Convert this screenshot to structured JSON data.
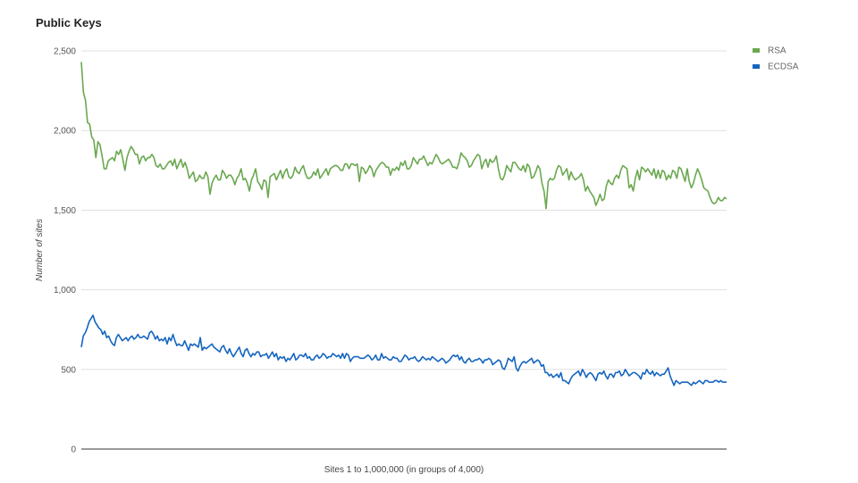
{
  "chart_data": {
    "type": "line",
    "title": "Public Keys",
    "xlabel": "Sites 1 to 1,000,000 (in groups of 4,000)",
    "ylabel": "Number of sites",
    "ylim": [
      0,
      2500
    ],
    "yticks": [
      {
        "value": 0,
        "label": "0"
      },
      {
        "value": 500,
        "label": "500"
      },
      {
        "value": 1000,
        "label": "1,000"
      },
      {
        "value": 1500,
        "label": "1,500"
      },
      {
        "value": 2000,
        "label": "2,000"
      },
      {
        "value": 2500,
        "label": "2,500"
      }
    ],
    "grid": true,
    "legend": "top-right",
    "series": [
      {
        "name": "RSA",
        "color": "#6aa84f",
        "values": [
          2430,
          2240,
          2190,
          2050,
          2040,
          1960,
          1940,
          1830,
          1930,
          1910,
          1840,
          1760,
          1760,
          1810,
          1820,
          1830,
          1810,
          1870,
          1850,
          1880,
          1820,
          1750,
          1830,
          1870,
          1900,
          1880,
          1850,
          1850,
          1790,
          1830,
          1840,
          1810,
          1830,
          1830,
          1850,
          1830,
          1780,
          1770,
          1790,
          1760,
          1760,
          1780,
          1800,
          1810,
          1780,
          1820,
          1760,
          1790,
          1820,
          1770,
          1800,
          1760,
          1700,
          1720,
          1740,
          1680,
          1690,
          1720,
          1700,
          1700,
          1740,
          1710,
          1600,
          1670,
          1700,
          1720,
          1690,
          1690,
          1750,
          1730,
          1700,
          1720,
          1720,
          1700,
          1660,
          1700,
          1720,
          1760,
          1690,
          1700,
          1670,
          1620,
          1690,
          1720,
          1760,
          1680,
          1660,
          1630,
          1690,
          1680,
          1580,
          1710,
          1720,
          1730,
          1690,
          1720,
          1750,
          1700,
          1740,
          1760,
          1710,
          1700,
          1720,
          1770,
          1740,
          1730,
          1760,
          1780,
          1730,
          1700,
          1700,
          1710,
          1740,
          1720,
          1760,
          1700,
          1720,
          1740,
          1760,
          1720,
          1760,
          1770,
          1780,
          1780,
          1770,
          1750,
          1750,
          1790,
          1790,
          1760,
          1790,
          1790,
          1780,
          1790,
          1680,
          1770,
          1760,
          1730,
          1750,
          1780,
          1760,
          1710,
          1750,
          1770,
          1790,
          1800,
          1790,
          1770,
          1770,
          1720,
          1760,
          1750,
          1770,
          1750,
          1800,
          1780,
          1810,
          1760,
          1760,
          1780,
          1830,
          1810,
          1790,
          1820,
          1820,
          1840,
          1810,
          1780,
          1800,
          1790,
          1820,
          1850,
          1830,
          1800,
          1790,
          1800,
          1810,
          1820,
          1800,
          1770,
          1770,
          1760,
          1800,
          1860,
          1840,
          1830,
          1810,
          1770,
          1780,
          1810,
          1830,
          1850,
          1840,
          1760,
          1800,
          1820,
          1770,
          1820,
          1800,
          1810,
          1840,
          1760,
          1700,
          1690,
          1720,
          1780,
          1760,
          1740,
          1800,
          1800,
          1780,
          1760,
          1750,
          1780,
          1740,
          1790,
          1770,
          1700,
          1710,
          1740,
          1780,
          1760,
          1670,
          1620,
          1510,
          1680,
          1700,
          1690,
          1700,
          1750,
          1780,
          1770,
          1720,
          1740,
          1760,
          1690,
          1740,
          1710,
          1690,
          1700,
          1710,
          1730,
          1690,
          1620,
          1650,
          1620,
          1600,
          1580,
          1530,
          1560,
          1600,
          1560,
          1570,
          1650,
          1690,
          1670,
          1660,
          1700,
          1720,
          1700,
          1750,
          1780,
          1770,
          1760,
          1640,
          1660,
          1620,
          1700,
          1750,
          1690,
          1770,
          1760,
          1740,
          1760,
          1740,
          1720,
          1760,
          1700,
          1750,
          1700,
          1750,
          1740,
          1690,
          1720,
          1700,
          1750,
          1740,
          1700,
          1770,
          1760,
          1720,
          1680,
          1760,
          1680,
          1640,
          1670,
          1720,
          1760,
          1730,
          1690,
          1640,
          1630,
          1620,
          1580,
          1550,
          1540,
          1550,
          1580,
          1560,
          1560,
          1580,
          1570
        ]
      },
      {
        "name": "ECDSA",
        "color": "#1565c0",
        "values": [
          640,
          710,
          730,
          760,
          800,
          820,
          840,
          800,
          780,
          760,
          750,
          720,
          740,
          700,
          710,
          680,
          660,
          650,
          700,
          720,
          700,
          680,
          690,
          700,
          680,
          700,
          710,
          690,
          700,
          720,
          700,
          700,
          710,
          700,
          690,
          730,
          740,
          720,
          690,
          710,
          680,
          690,
          680,
          700,
          660,
          700,
          680,
          720,
          680,
          650,
          660,
          650,
          650,
          680,
          650,
          620,
          660,
          650,
          660,
          650,
          640,
          700,
          620,
          640,
          630,
          640,
          650,
          660,
          640,
          630,
          620,
          610,
          640,
          650,
          620,
          600,
          630,
          600,
          580,
          600,
          620,
          640,
          600,
          580,
          620,
          630,
          600,
          580,
          600,
          590,
          610,
          610,
          580,
          590,
          590,
          600,
          570,
          590,
          610,
          580,
          600,
          560,
          580,
          570,
          580,
          550,
          570,
          560,
          580,
          600,
          560,
          570,
          590,
          590,
          580,
          600,
          570,
          580,
          560,
          560,
          580,
          590,
          570,
          580,
          600,
          590,
          570,
          580,
          580,
          600,
          590,
          580,
          590,
          570,
          600,
          570,
          600,
          590,
          550,
          570,
          580,
          580,
          580,
          570,
          570,
          570,
          580,
          590,
          580,
          560,
          570,
          590,
          560,
          560,
          600,
          570,
          580,
          570,
          560,
          560,
          580,
          570,
          570,
          550,
          550,
          570,
          590,
          580,
          560,
          570,
          570,
          580,
          560,
          550,
          560,
          580,
          570,
          560,
          570,
          560,
          580,
          570,
          560,
          550,
          560,
          570,
          560,
          540,
          550,
          560,
          580,
          590,
          580,
          590,
          560,
          580,
          550,
          540,
          560,
          570,
          550,
          550,
          560,
          560,
          570,
          560,
          540,
          560,
          560,
          570,
          560,
          530,
          540,
          550,
          560,
          550,
          510,
          500,
          530,
          570,
          560,
          550,
          580,
          510,
          490,
          520,
          540,
          550,
          540,
          550,
          560,
          570,
          540,
          550,
          560,
          550,
          520,
          530,
          480,
          480,
          460,
          470,
          450,
          460,
          470,
          450,
          480,
          430,
          430,
          420,
          410,
          440,
          460,
          470,
          480,
          490,
          460,
          500,
          480,
          450,
          470,
          480,
          470,
          450,
          430,
          470,
          480,
          470,
          490,
          460,
          440,
          470,
          470,
          450,
          480,
          480,
          490,
          460,
          470,
          500,
          480,
          460,
          470,
          480,
          480,
          470,
          460,
          440,
          480,
          470,
          500,
          480,
          470,
          490,
          460,
          480,
          470,
          460,
          470,
          470,
          490,
          510,
          460,
          430,
          400,
          430,
          420,
          410,
          420,
          420,
          420,
          420,
          410,
          400,
          420,
          410,
          420,
          430,
          420,
          410,
          430,
          430,
          420,
          420,
          420,
          430,
          430,
          420,
          430,
          420,
          420,
          420
        ]
      }
    ]
  }
}
